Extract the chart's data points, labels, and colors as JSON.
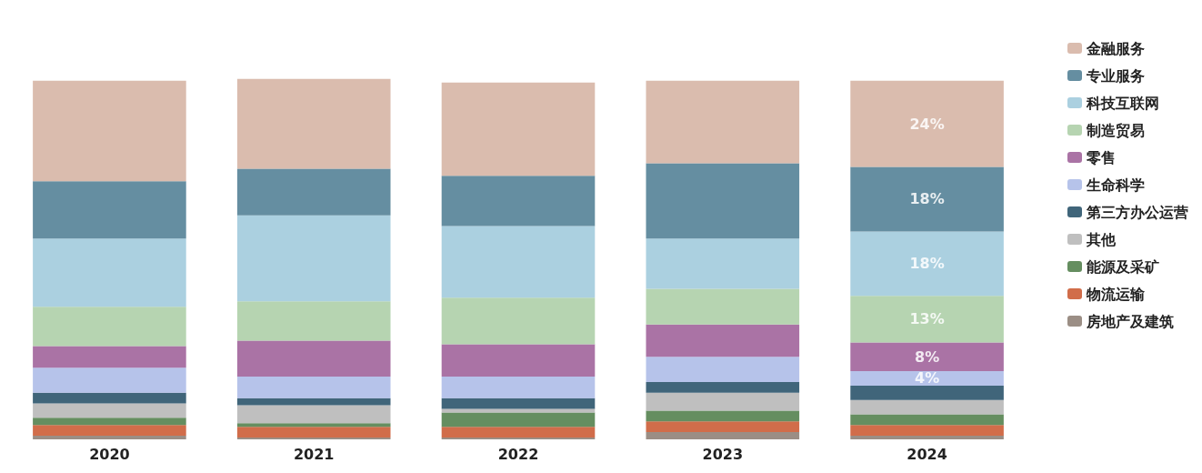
{
  "chart_data": {
    "type": "bar",
    "stacked": true,
    "tick_labels": "x",
    "legend": "right",
    "categories": [
      "2020",
      "2021",
      "2022",
      "2023",
      "2024"
    ],
    "series": [
      {
        "name": "房地产及建筑",
        "color": "#8a7a70",
        "values": [
          1,
          0.5,
          0.5,
          2,
          1
        ]
      },
      {
        "name": "物流运输",
        "color": "#c9542a",
        "values": [
          3,
          3,
          3,
          3,
          3
        ]
      },
      {
        "name": "能源及采矿",
        "color": "#4a7a44",
        "values": [
          2,
          1,
          4,
          3,
          3
        ]
      },
      {
        "name": "其他",
        "color": "#b4b4b4",
        "values": [
          4,
          5,
          1,
          5,
          4
        ]
      },
      {
        "name": "第三方办公运营",
        "color": "#1f4a63",
        "values": [
          3,
          2,
          3,
          3,
          4
        ]
      },
      {
        "name": "生命科学",
        "color": "#a9b8e6",
        "values": [
          7,
          6,
          6,
          7,
          4
        ],
        "value_labels": [
          null,
          null,
          null,
          null,
          "4%"
        ]
      },
      {
        "name": "零售",
        "color": "#9b5a95",
        "values": [
          6,
          10,
          9,
          9,
          8
        ],
        "value_labels": [
          null,
          null,
          null,
          null,
          "8%"
        ]
      },
      {
        "name": "制造贸易",
        "color": "#a9cda3",
        "values": [
          11,
          11,
          13,
          10,
          13
        ],
        "value_labels": [
          null,
          null,
          null,
          null,
          "13%"
        ]
      },
      {
        "name": "科技互联网",
        "color": "#9cc8da",
        "values": [
          19,
          24,
          20,
          14,
          18
        ],
        "value_labels": [
          null,
          null,
          null,
          null,
          "18%"
        ]
      },
      {
        "name": "专业服务",
        "color": "#4a7a90",
        "values": [
          16,
          13,
          14,
          21,
          18
        ],
        "value_labels": [
          null,
          null,
          null,
          null,
          "18%"
        ]
      },
      {
        "name": "金融服务",
        "color": "#d4b0a0",
        "values": [
          28,
          25,
          26,
          23,
          24
        ],
        "value_labels": [
          null,
          null,
          null,
          null,
          "24%"
        ]
      }
    ]
  }
}
